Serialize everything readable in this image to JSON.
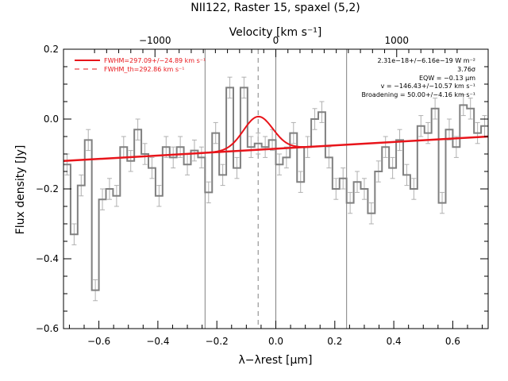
{
  "chart_data": {
    "type": "line",
    "title": "NII122, Raster 15, spaxel (5,2)",
    "xlabel": "λ−λrest [μm]",
    "ylabel": "Flux density [Jy]",
    "top_axis_label": "Velocity [km s⁻¹]",
    "xlim": [
      -0.72,
      0.72
    ],
    "ylim": [
      -0.6,
      0.2
    ],
    "x_ticks": [
      -0.6,
      -0.4,
      -0.2,
      0.0,
      0.2,
      0.4,
      0.6
    ],
    "x_tick_labels": [
      "−0.6",
      "−0.4",
      "−0.2",
      "0.0",
      "0.2",
      "0.4",
      "0.6"
    ],
    "y_ticks": [
      -0.6,
      -0.4,
      -0.2,
      0.0,
      0.2
    ],
    "y_tick_labels": [
      "−0.6",
      "−0.4",
      "−0.2",
      "0.0",
      "0.2"
    ],
    "top_ticks_kms": [
      -1000,
      0,
      1000
    ],
    "top_tick_labels": [
      "−1000",
      "0",
      "1000"
    ],
    "velocity_per_micron": 2440,
    "colors": {
      "data": "#808080",
      "model": "#e8141a",
      "errbar": "#b0b0b0",
      "vline": "#808080"
    },
    "legend": {
      "placement": "top-left",
      "entries": [
        {
          "label": "FWHM=297.09+/−24.89 km s⁻¹",
          "style": "solid"
        },
        {
          "label": "FWHM_th=292.86 km s⁻¹",
          "style": "dashed"
        }
      ]
    },
    "annotations": [
      "2.31e−18+/−6.16e−19 W m⁻²",
      "3.76σ",
      "EQW = −0.13 μm",
      "v = −146.43+/−10.57 km s⁻¹",
      "Broadening = 50.00+/−4.16 km s⁻¹"
    ],
    "vertical_lines": [
      -0.24,
      0.0,
      0.24
    ],
    "dashed_vertical_line": -0.06,
    "bin_width": 0.024,
    "series": [
      {
        "name": "data",
        "style": "step",
        "x": [
          -0.708,
          -0.684,
          -0.66,
          -0.636,
          -0.612,
          -0.588,
          -0.564,
          -0.54,
          -0.516,
          -0.492,
          -0.468,
          -0.444,
          -0.42,
          -0.396,
          -0.372,
          -0.348,
          -0.324,
          -0.3,
          -0.276,
          -0.252,
          -0.228,
          -0.204,
          -0.18,
          -0.156,
          -0.132,
          -0.108,
          -0.084,
          -0.06,
          -0.036,
          -0.012,
          0.012,
          0.036,
          0.06,
          0.084,
          0.108,
          0.132,
          0.156,
          0.18,
          0.204,
          0.228,
          0.252,
          0.276,
          0.3,
          0.324,
          0.348,
          0.372,
          0.396,
          0.42,
          0.444,
          0.468,
          0.492,
          0.516,
          0.54,
          0.564,
          0.588,
          0.612,
          0.636,
          0.66,
          0.684,
          0.708
        ],
        "y": [
          -0.13,
          -0.33,
          -0.19,
          -0.06,
          -0.49,
          -0.23,
          -0.2,
          -0.22,
          -0.08,
          -0.12,
          -0.03,
          -0.1,
          -0.14,
          -0.22,
          -0.08,
          -0.11,
          -0.08,
          -0.13,
          -0.09,
          -0.11,
          -0.21,
          -0.04,
          -0.16,
          0.09,
          -0.14,
          0.09,
          -0.08,
          -0.07,
          -0.08,
          -0.06,
          -0.13,
          -0.11,
          -0.04,
          -0.18,
          -0.08,
          0.0,
          0.02,
          -0.11,
          -0.2,
          -0.17,
          -0.24,
          -0.18,
          -0.2,
          -0.27,
          -0.15,
          -0.08,
          -0.14,
          -0.06,
          -0.16,
          -0.2,
          -0.02,
          -0.04,
          0.03,
          -0.24,
          -0.03,
          -0.08,
          0.04,
          0.03,
          -0.04,
          -0.02
        ],
        "err": 0.03
      },
      {
        "name": "model",
        "style": "line",
        "baseline": {
          "x0": -0.72,
          "y0": -0.12,
          "x1": 0.72,
          "y1": -0.05
        },
        "gaussian": {
          "center": -0.06,
          "amplitude": 0.095,
          "sigma": 0.05
        }
      }
    ]
  }
}
